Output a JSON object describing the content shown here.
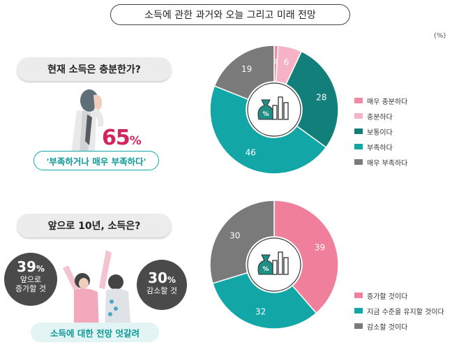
{
  "header": {
    "title": "소득에 관한 과거와 오늘 그리고 미래 전망",
    "unit": "(%)"
  },
  "section1": {
    "question": "현재 소득은 충분한가?",
    "highlight_pct": "65",
    "highlight_pct_sign": "%",
    "answer": "'부족하거나 매우 부족하다'"
  },
  "section2": {
    "question": "앞으로 10년, 소득은?",
    "left_pct": "39",
    "left_pct_sign": "%",
    "left_label_1": "앞으로",
    "left_label_2": "증가할 것",
    "right_pct": "30",
    "right_pct_sign": "%",
    "right_label": "감소할 것",
    "answer": "소득에 대한 전망 엇갈려"
  },
  "icons": [
    "money-bag-icon",
    "bar-chart-icon"
  ],
  "chart_data": [
    {
      "type": "pie",
      "categories": [
        "매우 충분하다",
        "충분하다",
        "보통이다",
        "부족하다",
        "매우 부족하다"
      ],
      "values": [
        1,
        6,
        28,
        46,
        19
      ],
      "colors": [
        "#f28aa5",
        "#f7b3c6",
        "#137f7b",
        "#13a6a6",
        "#7a7a7a"
      ],
      "legend": "right"
    },
    {
      "type": "pie",
      "categories": [
        "증가할 것이다",
        "지금 수준을 유지할 것이다",
        "감소할 것이다"
      ],
      "values": [
        39,
        32,
        30
      ],
      "colors": [
        "#f07f9b",
        "#13a6a6",
        "#7a7a7a"
      ],
      "legend": "right"
    }
  ]
}
